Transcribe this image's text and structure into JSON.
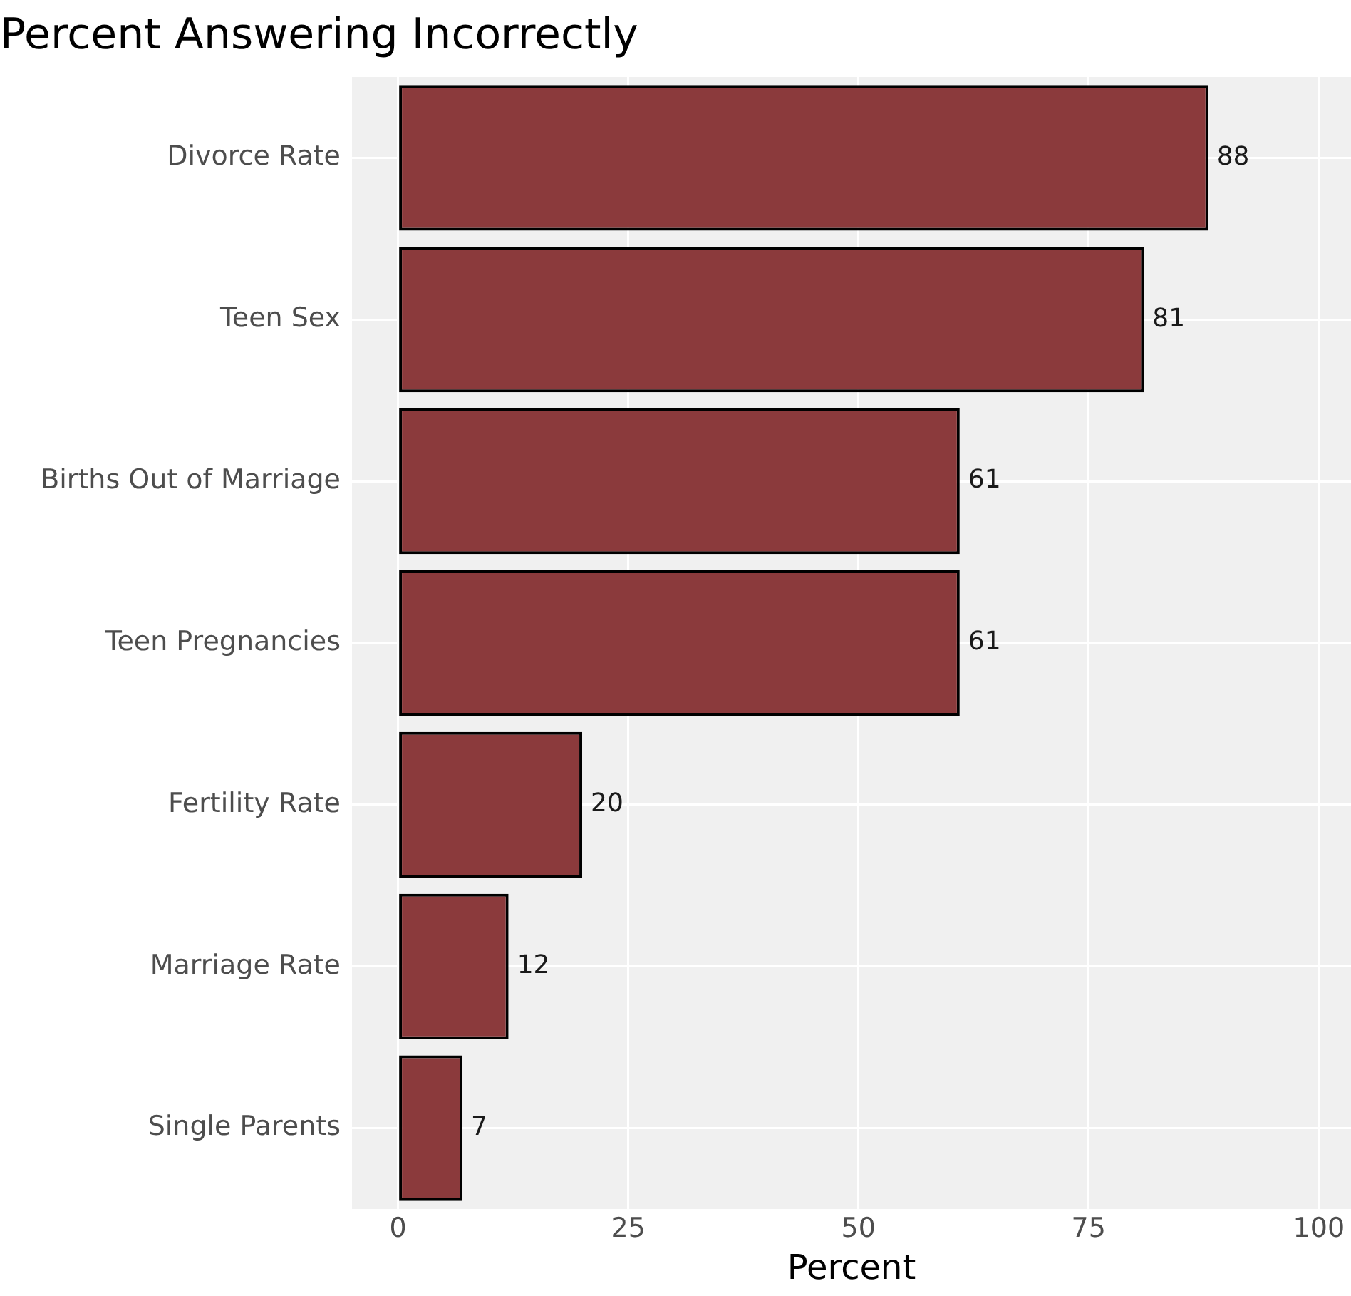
{
  "chart_data": {
    "type": "bar",
    "orientation": "horizontal",
    "title": "Percent Answering Incorrectly",
    "xlabel": "Percent",
    "categories": [
      "Divorce Rate",
      "Teen Sex",
      "Births Out of Marriage",
      "Teen Pregnancies",
      "Fertility Rate",
      "Marriage Rate",
      "Single Parents"
    ],
    "values": [
      88,
      81,
      61,
      61,
      20,
      12,
      7
    ],
    "color": "#8b3a3c",
    "xlim": [
      -5,
      103.5
    ],
    "xticks": [
      0,
      25,
      50,
      75,
      100
    ],
    "grid": true,
    "data_labels": true,
    "legend": false
  }
}
